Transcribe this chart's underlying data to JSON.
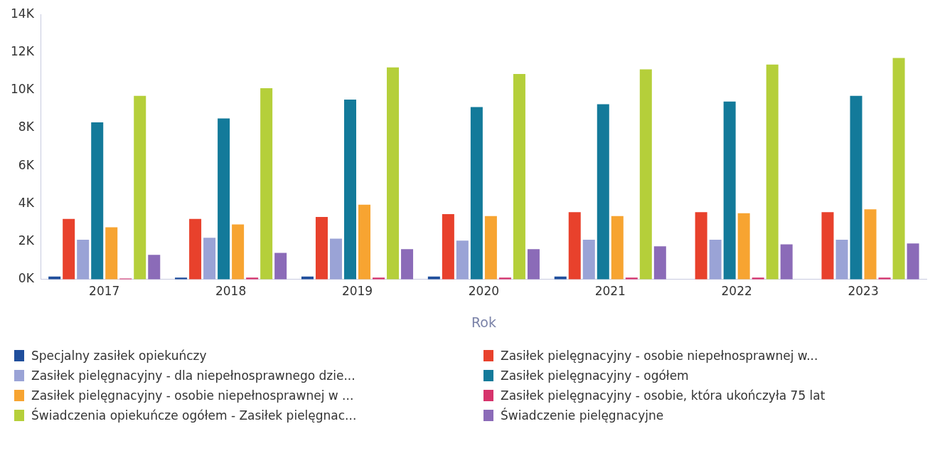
{
  "chart_data": {
    "type": "bar",
    "xlabel": "Rok",
    "categories": [
      "2017",
      "2018",
      "2019",
      "2020",
      "2021",
      "2022",
      "2023"
    ],
    "series": [
      {
        "name": "Specjalny zasiłek opiekuńczy",
        "color": "#1f4e9c",
        "values": [
          150,
          100,
          150,
          150,
          150,
          0,
          0
        ]
      },
      {
        "name": "Zasiłek pielęgnacyjny -  osobie niepełnosprawnej w...",
        "color": "#e8412c",
        "values": [
          3200,
          3200,
          3300,
          3450,
          3550,
          3550,
          3550
        ]
      },
      {
        "name": "Zasiłek pielęgnacyjny - dla niepełnosprawnego dzie...",
        "color": "#9aa3d6",
        "values": [
          2100,
          2200,
          2150,
          2050,
          2100,
          2100,
          2100
        ]
      },
      {
        "name": "Zasiłek pielęgnacyjny - ogółem",
        "color": "#137a9a",
        "values": [
          8300,
          8500,
          9500,
          9100,
          9250,
          9400,
          9700
        ]
      },
      {
        "name": "Zasiłek pielęgnacyjny - osobie niepełnosprawnej w ...",
        "color": "#f7a431",
        "values": [
          2750,
          2900,
          3950,
          3350,
          3350,
          3500,
          3700
        ]
      },
      {
        "name": "Zasiłek pielęgnacyjny - osobie, która ukończyła 75 lat",
        "color": "#d6336c",
        "values": [
          50,
          100,
          100,
          100,
          100,
          100,
          100
        ]
      },
      {
        "name": "Świadczenia opiekuńcze ogółem - Zasiłek pielęgnac...",
        "color": "#b5cf3a",
        "values": [
          9700,
          10100,
          11200,
          10850,
          11100,
          11350,
          11700
        ]
      },
      {
        "name": "Świadczenie pielęgnacyjne",
        "color": "#8b6bb8",
        "values": [
          1300,
          1400,
          1600,
          1600,
          1750,
          1850,
          1900
        ]
      }
    ],
    "ylim": [
      0,
      14000
    ],
    "yticks": [
      {
        "value": 0,
        "label": "0K"
      },
      {
        "value": 2000,
        "label": "2K"
      },
      {
        "value": 4000,
        "label": "4K"
      },
      {
        "value": 6000,
        "label": "6K"
      },
      {
        "value": 8000,
        "label": "8K"
      },
      {
        "value": 10000,
        "label": "10K"
      },
      {
        "value": 12000,
        "label": "12K"
      },
      {
        "value": 14000,
        "label": "14K"
      }
    ],
    "grid": false,
    "legend": "bottom"
  }
}
